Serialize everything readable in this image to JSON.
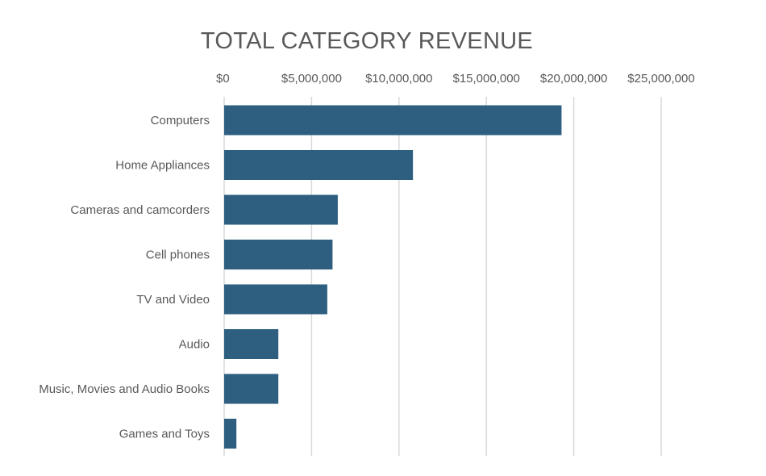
{
  "chart_data": {
    "type": "bar",
    "orientation": "horizontal",
    "title": "TOTAL CATEGORY REVENUE",
    "xlabel": "",
    "ylabel": "",
    "categories": [
      "Computers",
      "Home Appliances",
      "Cameras and camcorders",
      "Cell phones",
      "TV and Video",
      "Audio",
      "Music, Movies and Audio Books",
      "Games and Toys"
    ],
    "values": [
      19300000,
      10800000,
      6500000,
      6200000,
      5900000,
      3100000,
      3100000,
      700000
    ],
    "xlim": [
      0,
      25000000
    ],
    "x_ticks": [
      0,
      5000000,
      10000000,
      15000000,
      20000000,
      25000000
    ],
    "x_tick_labels": [
      "$0",
      "$5,000,000",
      "$10,000,000",
      "$15,000,000",
      "$20,000,000",
      "$25,000,000"
    ],
    "x_axis_position": "top",
    "grid": true,
    "legend": "none",
    "bar_color": "#2e5f80"
  }
}
